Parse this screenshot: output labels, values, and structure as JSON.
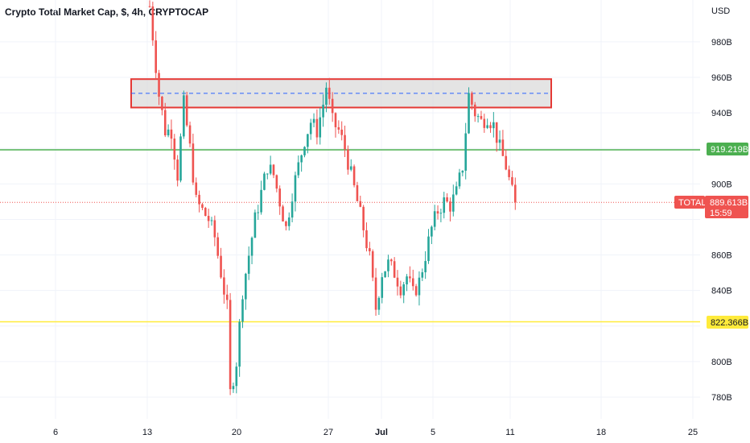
{
  "header": {
    "title": "Crypto Total Market Cap, $, 4h, CRYPTOCAP"
  },
  "axis": {
    "currency": "USD",
    "y_ticks": [
      "980B",
      "960B",
      "940B",
      "900B",
      "860B",
      "840B",
      "800B",
      "780B"
    ],
    "x_ticks": [
      "6",
      "13",
      "20",
      "27",
      "Jul",
      "5",
      "11",
      "18",
      "25"
    ]
  },
  "price_tags": {
    "green_level": "919.219B",
    "yellow_level": "822.366B",
    "symbol": "TOTAL",
    "last_price": "889.613B",
    "countdown": "15:59"
  },
  "colors": {
    "up": "#26a69a",
    "down": "#ef5350",
    "support_green": "#4caf50",
    "support_yellow": "#ffeb3b",
    "zone_border": "#e53935",
    "zone_fill": "#d9d9d9",
    "zone_mid": "#2962ff"
  },
  "chart_data": {
    "type": "candlestick",
    "title": "Crypto Total Market Cap, $, 4h, CRYPTOCAP",
    "ylabel": "USD",
    "ylim": [
      772,
      1002
    ],
    "x_tick_labels": [
      "6",
      "13",
      "20",
      "27",
      "Jul",
      "5",
      "11",
      "18",
      "25"
    ],
    "y_tick_labels": [
      "780B",
      "800B",
      "840B",
      "860B",
      "900B",
      "940B",
      "960B",
      "980B"
    ],
    "horizontal_levels": [
      {
        "value": 919.219,
        "label": "919.219B",
        "color": "#4caf50"
      },
      {
        "value": 822.366,
        "label": "822.366B",
        "color": "#ffeb3b"
      },
      {
        "value": 889.613,
        "label": "889.613B",
        "color": "#ef5350",
        "style": "dotted"
      }
    ],
    "resistance_zone": {
      "top": 959,
      "bottom": 943,
      "mid": 951
    },
    "last_price": 889.613,
    "price_path": [
      [
        0,
        1000
      ],
      [
        3,
        950
      ],
      [
        5,
        930
      ],
      [
        7,
        930
      ],
      [
        9,
        905
      ],
      [
        11,
        945
      ],
      [
        13,
        920
      ],
      [
        15,
        890
      ],
      [
        17,
        885
      ],
      [
        19,
        880
      ],
      [
        21,
        870
      ],
      [
        23,
        850
      ],
      [
        25,
        830
      ],
      [
        26,
        782
      ],
      [
        28,
        800
      ],
      [
        30,
        840
      ],
      [
        32,
        860
      ],
      [
        34,
        880
      ],
      [
        36,
        895
      ],
      [
        38,
        910
      ],
      [
        40,
        905
      ],
      [
        42,
        890
      ],
      [
        44,
        875
      ],
      [
        46,
        895
      ],
      [
        48,
        910
      ],
      [
        50,
        925
      ],
      [
        52,
        935
      ],
      [
        54,
        930
      ],
      [
        56,
        945
      ],
      [
        57,
        955
      ],
      [
        59,
        935
      ],
      [
        61,
        930
      ],
      [
        63,
        920
      ],
      [
        65,
        905
      ],
      [
        67,
        890
      ],
      [
        69,
        875
      ],
      [
        71,
        858
      ],
      [
        73,
        830
      ],
      [
        75,
        850
      ],
      [
        77,
        855
      ],
      [
        79,
        850
      ],
      [
        81,
        842
      ],
      [
        83,
        848
      ],
      [
        85,
        838
      ],
      [
        87,
        845
      ],
      [
        89,
        860
      ],
      [
        91,
        875
      ],
      [
        93,
        885
      ],
      [
        95,
        890
      ],
      [
        97,
        888
      ],
      [
        99,
        895
      ],
      [
        101,
        910
      ],
      [
        103,
        950
      ],
      [
        105,
        940
      ],
      [
        107,
        935
      ],
      [
        109,
        938
      ],
      [
        111,
        933
      ],
      [
        113,
        920
      ],
      [
        115,
        910
      ],
      [
        117,
        895
      ],
      [
        118,
        889.6
      ]
    ]
  }
}
